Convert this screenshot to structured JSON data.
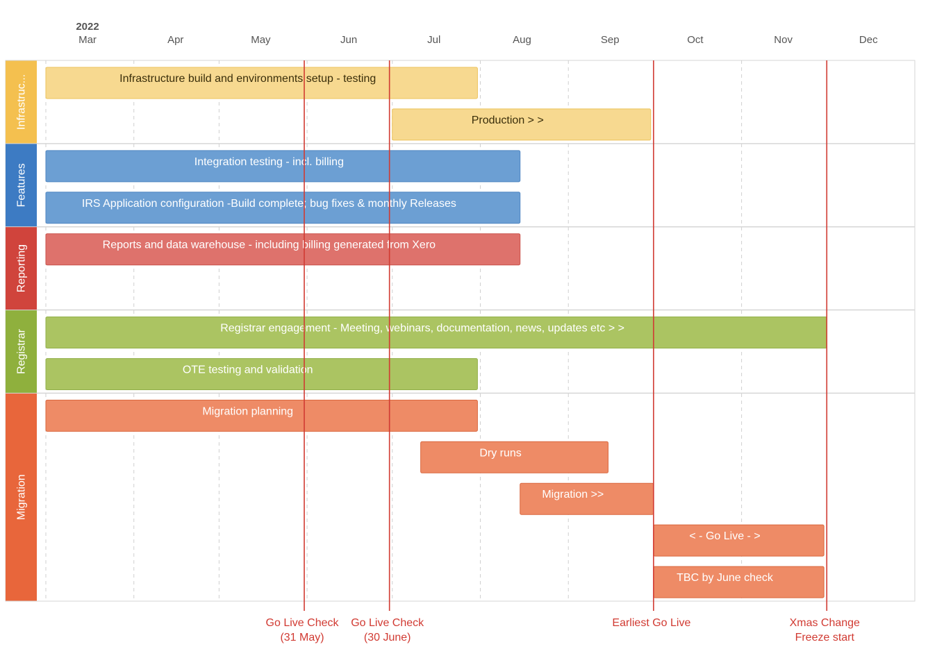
{
  "chart_data": {
    "type": "gantt",
    "year": "2022",
    "months": [
      "Mar",
      "Apr",
      "May",
      "Jun",
      "Jul",
      "Aug",
      "Sep",
      "Oct",
      "Nov",
      "Dec"
    ],
    "x_range": [
      "2022-03-01",
      "2022-12-31"
    ],
    "grid": true,
    "groups": [
      {
        "id": "infra",
        "label": "Infrastruc...",
        "color": "#f4c04f",
        "bar_color": "#f7d990",
        "bar_border": "#ecc35b",
        "text_color": "#3a2e0a",
        "rows": 2
      },
      {
        "id": "features",
        "label": "Features",
        "color": "#3d7bc3",
        "bar_color": "#6c9fd3",
        "bar_border": "#4f86c2",
        "text_color": "#ffffff",
        "rows": 2
      },
      {
        "id": "reporting",
        "label": "Reporting",
        "color": "#d0443c",
        "bar_color": "#de726c",
        "bar_border": "#c9524b",
        "text_color": "#ffffff",
        "rows": 2
      },
      {
        "id": "registrar",
        "label": "Registrar",
        "color": "#8fb03d",
        "bar_color": "#abc462",
        "bar_border": "#92b04a",
        "text_color": "#ffffff",
        "rows": 2
      },
      {
        "id": "migration",
        "label": "Migration",
        "color": "#e8663b",
        "bar_color": "#ee8b66",
        "bar_border": "#d9673e",
        "text_color": "#ffffff",
        "rows": 5
      }
    ],
    "tasks": [
      {
        "group": "infra",
        "row": 0,
        "label": "Infrastructure build and environments setup - testing",
        "start": "2022-03-01",
        "end": "2022-07-31"
      },
      {
        "group": "infra",
        "row": 1,
        "label": "Production > >",
        "start": "2022-07-01",
        "end": "2022-09-30"
      },
      {
        "group": "features",
        "row": 0,
        "label": "Integration testing - incl. billing",
        "start": "2022-03-01",
        "end": "2022-08-15"
      },
      {
        "group": "features",
        "row": 1,
        "label": "IRS Application configuration -Build complete; bug fixes & monthly Releases",
        "start": "2022-03-01",
        "end": "2022-08-15"
      },
      {
        "group": "reporting",
        "row": 0,
        "label": "Reports and data warehouse - including billing generated from Xero",
        "start": "2022-03-01",
        "end": "2022-08-15"
      },
      {
        "group": "registrar",
        "row": 0,
        "label": "Registrar engagement - Meeting, webinars, documentation, news, updates etc > >",
        "start": "2022-03-01",
        "end": "2022-12-01"
      },
      {
        "group": "registrar",
        "row": 1,
        "label": "OTE testing and validation",
        "start": "2022-03-01",
        "end": "2022-07-31"
      },
      {
        "group": "migration",
        "row": 0,
        "label": "Migration planning",
        "start": "2022-03-01",
        "end": "2022-07-31"
      },
      {
        "group": "migration",
        "row": 1,
        "label": "Dry runs",
        "start": "2022-07-11",
        "end": "2022-09-15"
      },
      {
        "group": "migration",
        "row": 2,
        "label": "Migration >>",
        "start": "2022-08-15",
        "end": "2022-10-01"
      },
      {
        "group": "migration",
        "row": 3,
        "label": "< - Go Live - >",
        "start": "2022-10-01",
        "end": "2022-11-30"
      },
      {
        "group": "migration",
        "row": 4,
        "label": "TBC by June check",
        "start": "2022-10-01",
        "end": "2022-11-30"
      }
    ],
    "markers": [
      {
        "date": "2022-05-31",
        "label_lines": [
          "Go Live Check",
          "(31 May)"
        ],
        "color": "#d13a32"
      },
      {
        "date": "2022-06-30",
        "label_lines": [
          "Go Live Check",
          "(30 June)"
        ],
        "color": "#d13a32"
      },
      {
        "date": "2022-10-01",
        "label_lines": [
          "Earliest Go Live"
        ],
        "color": "#d13a32"
      },
      {
        "date": "2022-12-01",
        "label_lines": [
          "Xmas Change",
          "Freeze start"
        ],
        "color": "#d13a32"
      }
    ]
  }
}
